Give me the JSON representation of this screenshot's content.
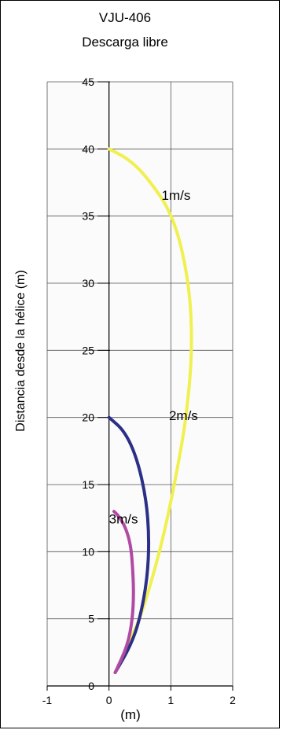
{
  "chart_data": {
    "type": "line",
    "title": "VJU-406",
    "subtitle": "Descarga libre",
    "xlabel": "(m)",
    "ylabel": "Distancia desde la hélice (m)",
    "xlim": [
      -1,
      2
    ],
    "ylim": [
      0,
      45
    ],
    "xticks": [
      "-1",
      "0",
      "1",
      "2"
    ],
    "yticks": [
      "0",
      "5",
      "10",
      "15",
      "20",
      "25",
      "30",
      "35",
      "40",
      "45"
    ],
    "grid": true,
    "series": [
      {
        "name": "1m/s",
        "color": "#f0f050",
        "points": [
          [
            0.1,
            1
          ],
          [
            0.3,
            3
          ],
          [
            0.5,
            5
          ],
          [
            0.7,
            8
          ],
          [
            0.9,
            11.5
          ],
          [
            1.1,
            16
          ],
          [
            1.25,
            20
          ],
          [
            1.35,
            25
          ],
          [
            1.3,
            30
          ],
          [
            1.05,
            35
          ],
          [
            0.6,
            38
          ],
          [
            0.3,
            39.3
          ],
          [
            0,
            40
          ]
        ]
      },
      {
        "name": "2m/s",
        "color": "#2b2f86",
        "points": [
          [
            0.1,
            1
          ],
          [
            0.35,
            3
          ],
          [
            0.5,
            5
          ],
          [
            0.62,
            8
          ],
          [
            0.65,
            11
          ],
          [
            0.6,
            14
          ],
          [
            0.45,
            17
          ],
          [
            0.25,
            19
          ],
          [
            0,
            20
          ]
        ]
      },
      {
        "name": "3m/s",
        "color": "#b04aa4",
        "points": [
          [
            0.1,
            1
          ],
          [
            0.3,
            3
          ],
          [
            0.38,
            5
          ],
          [
            0.4,
            7
          ],
          [
            0.38,
            9
          ],
          [
            0.35,
            10.5
          ],
          [
            0.27,
            11.8
          ],
          [
            0.15,
            12.7
          ],
          [
            0.08,
            13
          ]
        ]
      }
    ],
    "labels": [
      {
        "text": "1m/s",
        "x": 0.85,
        "y": 36.2
      },
      {
        "text": "2m/s",
        "x": 0.97,
        "y": 19.8
      },
      {
        "text": "3m/s",
        "x": 0.0,
        "y": 12.1
      }
    ]
  }
}
